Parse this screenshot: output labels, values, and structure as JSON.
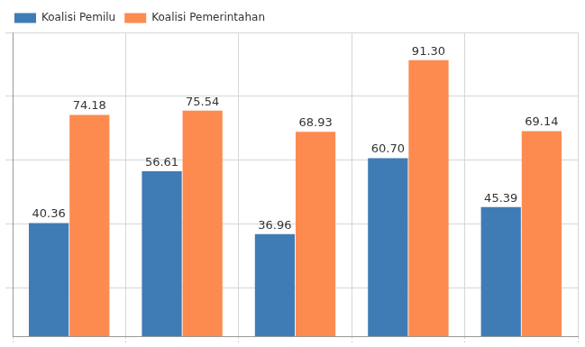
{
  "chart_data": {
    "type": "bar",
    "categories": [
      null,
      null,
      null,
      null,
      null
    ],
    "series": [
      {
        "name": "Koalisi Pemilu",
        "color": "#3f7cb6",
        "values": [
          40.36,
          56.61,
          36.96,
          60.7,
          45.39
        ],
        "value_labels": [
          "40.36",
          "56.61",
          "36.96",
          "60.70",
          "45.39"
        ]
      },
      {
        "name": "Koalisi Pemerintahan",
        "color": "#fd8b50",
        "values": [
          74.18,
          75.54,
          68.93,
          91.3,
          69.14
        ],
        "value_labels": [
          "74.18",
          "75.54",
          "68.93",
          "91.30",
          "69.14"
        ]
      }
    ],
    "ylim": [
      5,
      100
    ],
    "yticks": [
      20,
      40,
      60,
      80,
      100
    ],
    "grid": true,
    "legend": "upper left",
    "data_labels": true,
    "tick_labels": false
  }
}
